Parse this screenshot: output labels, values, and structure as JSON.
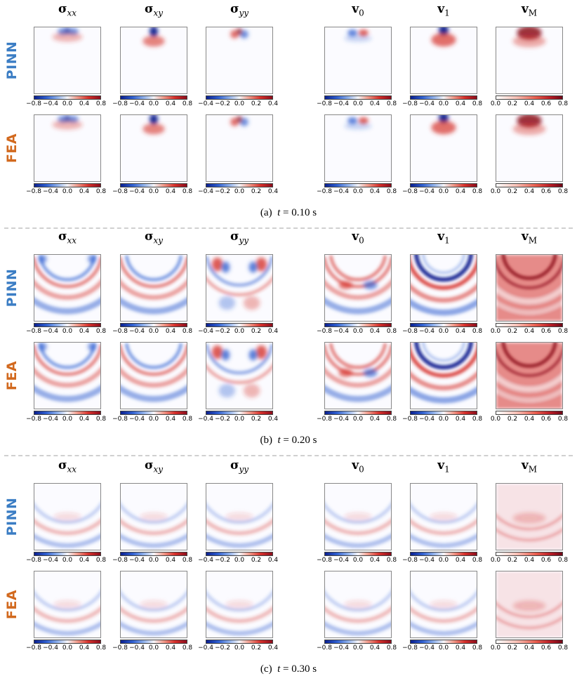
{
  "columns": [
    {
      "key": "sxx",
      "base": "σ",
      "sub": "xx",
      "sub_style": "italic",
      "cbar": "diverging",
      "ticks": [
        "−0.8",
        "−0.4",
        "0.0",
        "0.4",
        "0.8"
      ]
    },
    {
      "key": "sxy",
      "base": "σ",
      "sub": "xy",
      "sub_style": "italic",
      "cbar": "diverging",
      "ticks": [
        "−0.8",
        "−0.4",
        "0.0",
        "0.4",
        "0.8"
      ]
    },
    {
      "key": "syy",
      "base": "σ",
      "sub": "yy",
      "sub_style": "italic",
      "cbar": "diverging",
      "ticks": [
        "−0.4",
        "−0.2",
        "0.0",
        "0.2",
        "0.4"
      ]
    },
    {
      "key": "v0",
      "base": "v",
      "sub": "0",
      "sub_style": "upright",
      "cbar": "diverging",
      "ticks": [
        "−0.8",
        "−0.4",
        "0.0",
        "0.4",
        "0.8"
      ]
    },
    {
      "key": "v1",
      "base": "v",
      "sub": "1",
      "sub_style": "upright",
      "cbar": "diverging",
      "ticks": [
        "−0.8",
        "−0.4",
        "0.0",
        "0.4",
        "0.8"
      ]
    },
    {
      "key": "vM",
      "base": "v",
      "sub": "M",
      "sub_style": "upright",
      "cbar": "sequential",
      "ticks": [
        "0.0",
        "0.2",
        "0.4",
        "0.6",
        "0.8"
      ]
    }
  ],
  "rows": [
    {
      "key": "pinn",
      "label": "PINN",
      "color": "#3b7dc4"
    },
    {
      "key": "fea",
      "label": "FEA",
      "color": "#d2691e"
    }
  ],
  "colors": {
    "neg_strong": "#0a1f8f",
    "neg": "#2f5fd0",
    "pos": "#d6302b",
    "pos_strong": "#8c0d1c"
  },
  "blocks": [
    {
      "label": "(a)",
      "var": "t",
      "value": "0.10",
      "unit": "s",
      "intensity": 0.15
    },
    {
      "label": "(b)",
      "var": "t",
      "value": "0.20",
      "unit": "s",
      "intensity": 0.85
    },
    {
      "label": "(c)",
      "var": "t",
      "value": "0.30",
      "unit": "s",
      "intensity": 0.35
    }
  ]
}
